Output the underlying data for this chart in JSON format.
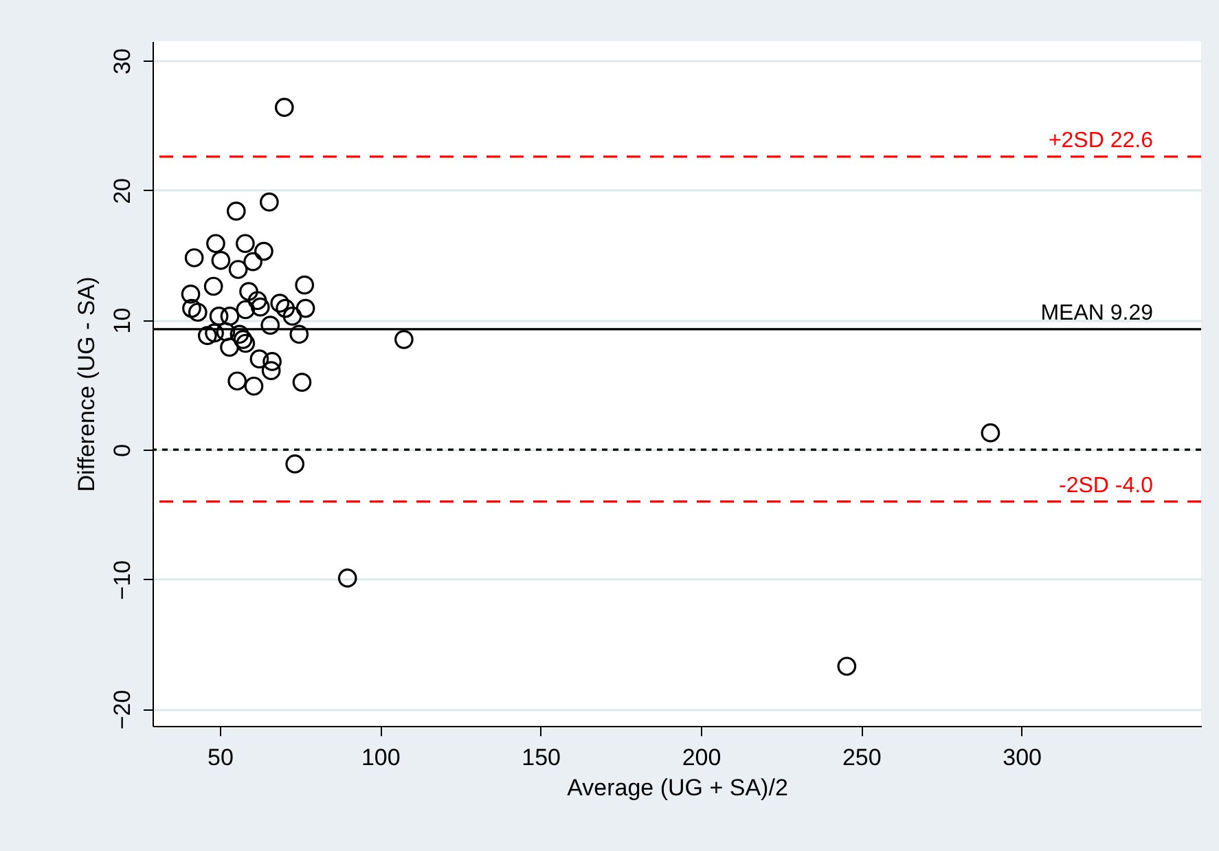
{
  "chart_data": {
    "type": "scatter",
    "xlabel": "Average (UG + SA)/2",
    "ylabel": "Difference (UG - SA)",
    "xlim": [
      29,
      356
    ],
    "ylim": [
      -21.3,
      31.5
    ],
    "xticks": [
      50,
      100,
      150,
      200,
      250,
      300
    ],
    "yticks": [
      -20,
      -10,
      0,
      10,
      20,
      30
    ],
    "grid": "y",
    "marker": "circle",
    "x": [
      70.1,
      55.1,
      65.4,
      42.0,
      48.7,
      50.3,
      57.9,
      63.7,
      60.3,
      55.7,
      48.0,
      76.4,
      40.9,
      59.0,
      41.2,
      43.1,
      49.7,
      53.1,
      58.0,
      61.7,
      62.6,
      68.7,
      70.4,
      72.6,
      76.7,
      65.7,
      46.1,
      48.3,
      51.8,
      56.1,
      53.0,
      57.2,
      58.0,
      74.7,
      107.4,
      62.3,
      66.3,
      66.0,
      55.4,
      60.6,
      75.6,
      73.4,
      89.8,
      290.3,
      245.5
    ],
    "series": [
      {
        "color": "#000000",
        "values": [
          26.4,
          18.4,
          19.1,
          14.8,
          15.9,
          14.6,
          15.9,
          15.3,
          14.5,
          13.9,
          12.6,
          12.7,
          12.0,
          12.2,
          10.9,
          10.6,
          10.3,
          10.3,
          10.8,
          11.5,
          11.0,
          11.3,
          10.9,
          10.3,
          10.9,
          9.6,
          8.8,
          9.0,
          9.1,
          8.9,
          7.9,
          8.5,
          8.2,
          8.9,
          8.5,
          7.0,
          6.8,
          6.1,
          5.3,
          4.9,
          5.2,
          -1.1,
          -9.9,
          1.3,
          -16.7
        ]
      }
    ],
    "ref_lines": [
      {
        "axis": "y",
        "value": 22.6,
        "label": "+2SD 22.6",
        "color": "#ff0000",
        "line_style": "dashed"
      },
      {
        "axis": "y",
        "value": 9.29,
        "label": "MEAN 9.29",
        "color": "#000000",
        "line_style": "solid"
      },
      {
        "axis": "y",
        "value": 0,
        "color": "#000000",
        "line_style": "dotted"
      },
      {
        "axis": "y",
        "value": -4.0,
        "label": "-2SD -4.0",
        "color": "#ff0000",
        "line_style": "dashed"
      }
    ]
  }
}
